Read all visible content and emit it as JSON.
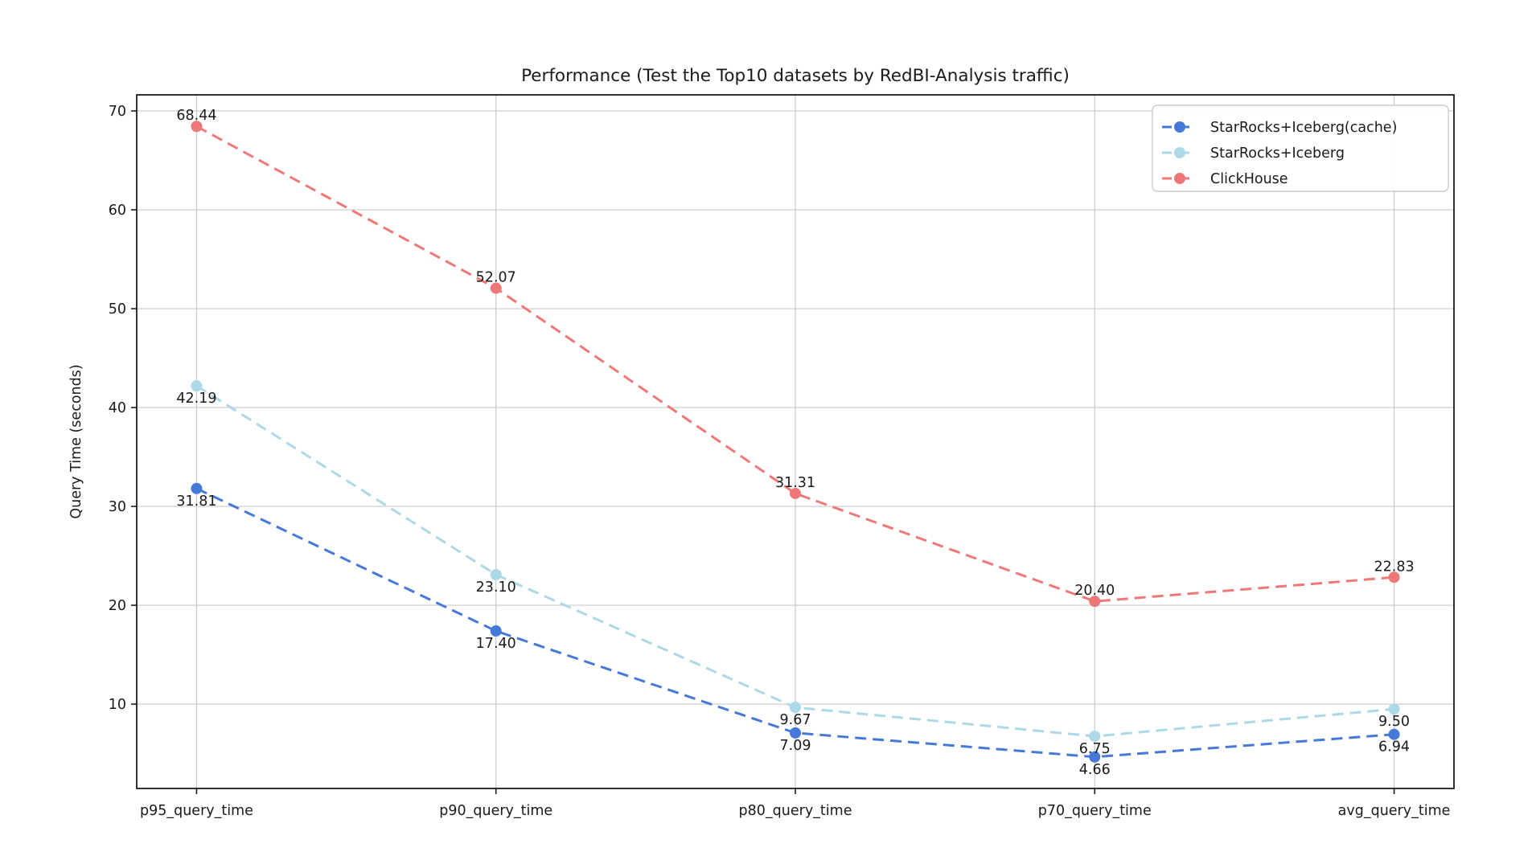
{
  "page": {
    "background": "#ffffff"
  },
  "chart_data": {
    "type": "line",
    "title": "Performance (Test the Top10 datasets by RedBI-Analysis traffic)",
    "xlabel": "",
    "ylabel": "Query Time (seconds)",
    "categories": [
      "p95_query_time",
      "p90_query_time",
      "p80_query_time",
      "p70_query_time",
      "avg_query_time"
    ],
    "series": [
      {
        "name": "StarRocks+Iceberg(cache)",
        "color": "#4678d7",
        "line_style": "dashed",
        "marker": "circle",
        "values": [
          31.81,
          17.4,
          7.09,
          4.66,
          6.94
        ],
        "point_labels": [
          "31.81",
          "17.40",
          "7.09",
          "4.66",
          "6.94"
        ],
        "label_position": "below"
      },
      {
        "name": "StarRocks+Iceberg",
        "color": "#add8e6",
        "line_style": "dashed",
        "marker": "circle",
        "values": [
          42.19,
          23.1,
          9.67,
          6.75,
          9.5
        ],
        "point_labels": [
          "42.19",
          "23.10",
          "9.67",
          "6.75",
          "9.50"
        ],
        "label_position": "below"
      },
      {
        "name": "ClickHouse",
        "color": "#ee7878",
        "line_style": "dashed",
        "marker": "circle",
        "values": [
          68.44,
          52.07,
          31.31,
          20.4,
          22.83
        ],
        "point_labels": [
          "68.44",
          "52.07",
          "31.31",
          "20.40",
          "22.83"
        ],
        "label_position": "above"
      }
    ],
    "yticks": [
      10,
      20,
      30,
      40,
      50,
      60,
      70
    ],
    "ylim": [
      1.47,
      71.63
    ],
    "xlim": [
      -0.2,
      4.2
    ],
    "grid": true,
    "legend": {
      "position": "upper right"
    },
    "colors": {
      "grid": "#c9c9c9",
      "spine": "#1c1c1c",
      "text": "#1a1a1a",
      "legend_border": "#cccccc",
      "legend_background": "#ffffff"
    }
  }
}
